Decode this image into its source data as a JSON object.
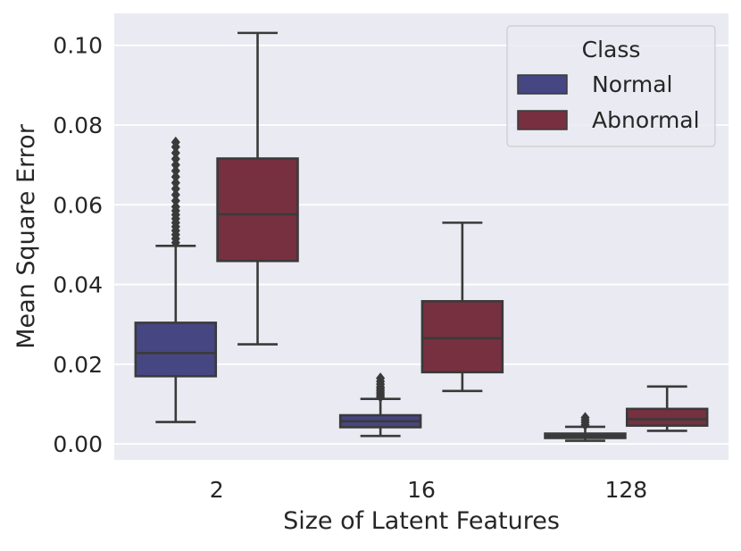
{
  "chart_data": {
    "type": "box",
    "title": "",
    "xlabel": "Size of Latent Features",
    "ylabel": "Mean Square Error",
    "categories": [
      "2",
      "16",
      "128"
    ],
    "ylim": [
      -0.004,
      0.108
    ],
    "yticks": [
      0.0,
      0.02,
      0.04,
      0.06,
      0.08,
      0.1
    ],
    "ytick_labels": [
      "0.00",
      "0.02",
      "0.04",
      "0.06",
      "0.08",
      "0.10"
    ],
    "grid": true,
    "legend": {
      "title": "Class",
      "position": "top-right"
    },
    "series": [
      {
        "name": "Normal",
        "color": "#464682",
        "boxes": [
          {
            "category": "2",
            "whisker_low": 0.0055,
            "q1": 0.017,
            "median": 0.0228,
            "q3": 0.0304,
            "whisker_high": 0.0497,
            "outliers": [
              0.0505,
              0.0515,
              0.0525,
              0.0535,
              0.0545,
              0.0555,
              0.0565,
              0.0575,
              0.0585,
              0.0595,
              0.061,
              0.0625,
              0.064,
              0.0655,
              0.067,
              0.0685,
              0.07,
              0.0715,
              0.073,
              0.0745,
              0.0757
            ]
          },
          {
            "category": "16",
            "whisker_low": 0.002,
            "q1": 0.0042,
            "median": 0.0057,
            "q3": 0.0072,
            "whisker_high": 0.0113,
            "outliers": [
              0.0118,
              0.0123,
              0.0128,
              0.0133,
              0.0138,
              0.0143,
              0.015,
              0.0157,
              0.0165
            ]
          },
          {
            "category": "128",
            "whisker_low": 0.0008,
            "q1": 0.0015,
            "median": 0.002,
            "q3": 0.0026,
            "whisker_high": 0.0043,
            "outliers": [
              0.0048,
              0.0054,
              0.006,
              0.0066
            ]
          }
        ]
      },
      {
        "name": "Abnormal",
        "color": "#77303f",
        "boxes": [
          {
            "category": "2",
            "whisker_low": 0.025,
            "q1": 0.0459,
            "median": 0.0576,
            "q3": 0.0716,
            "whisker_high": 0.1031,
            "outliers": []
          },
          {
            "category": "16",
            "whisker_low": 0.0133,
            "q1": 0.018,
            "median": 0.0265,
            "q3": 0.0358,
            "whisker_high": 0.0555,
            "outliers": []
          },
          {
            "category": "128",
            "whisker_low": 0.0033,
            "q1": 0.0046,
            "median": 0.0062,
            "q3": 0.0088,
            "whisker_high": 0.0144,
            "outliers": []
          }
        ]
      }
    ]
  }
}
